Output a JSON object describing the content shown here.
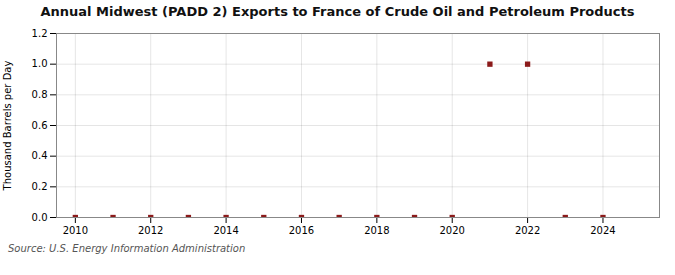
{
  "chart_data": {
    "type": "scatter",
    "title": "Annual Midwest (PADD 2) Exports to France of Crude Oil and Petroleum Products",
    "ylabel": "Thousand Barrels per Day",
    "source": "Source: U.S. Energy Information Administration",
    "x": [
      2010,
      2011,
      2012,
      2013,
      2014,
      2015,
      2016,
      2017,
      2018,
      2019,
      2020,
      2021,
      2022,
      2023,
      2024
    ],
    "values": [
      0.0,
      0.0,
      0.0,
      0.0,
      0.0,
      0.0,
      0.0,
      0.0,
      0.0,
      0.0,
      0.0,
      1.0,
      1.0,
      0.0,
      0.0
    ],
    "color": "#8b1a1a",
    "marker": "square",
    "xlim": [
      2009.5,
      2025.5
    ],
    "xticks": [
      2010,
      2012,
      2014,
      2016,
      2018,
      2020,
      2022,
      2024
    ],
    "ylim": [
      0.0,
      1.2
    ],
    "yticks": [
      {
        "value": 0.0,
        "label": "0.0"
      },
      0.2,
      0.4,
      0.6,
      0.8,
      {
        "value": 1.0,
        "label": "1.0"
      },
      1.2
    ],
    "grid": true
  }
}
